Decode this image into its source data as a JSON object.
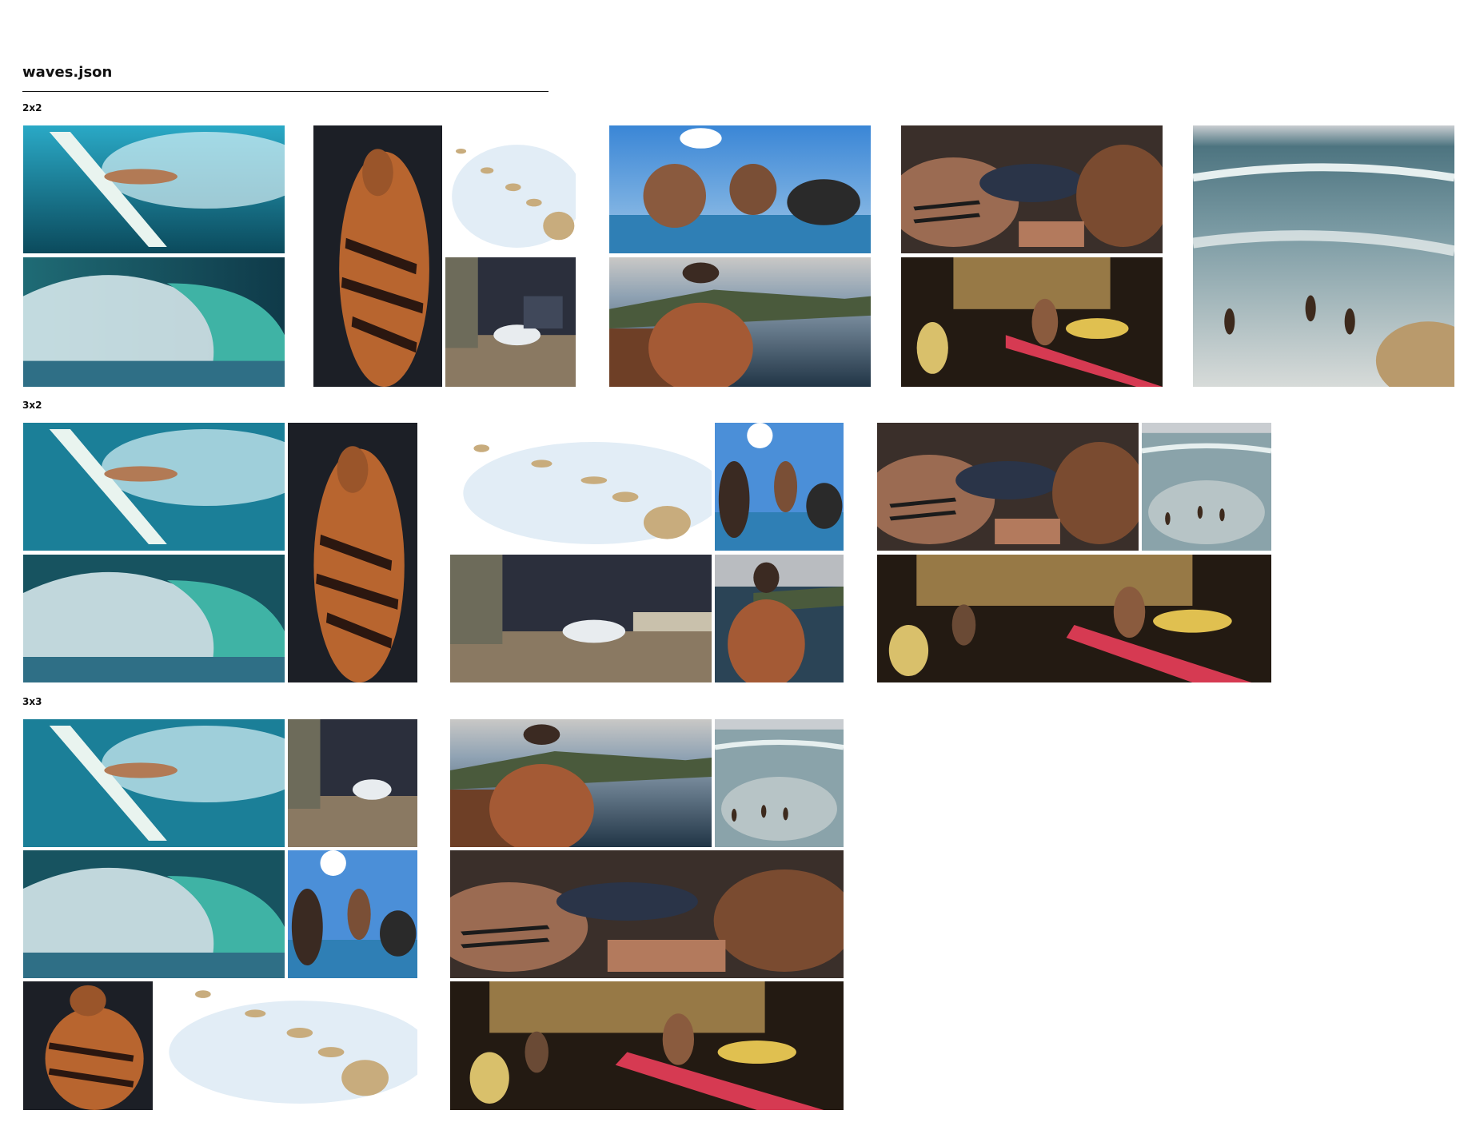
{
  "page": {
    "title": "waves.json"
  },
  "sections": [
    {
      "label": "2x2"
    },
    {
      "label": "3x2"
    },
    {
      "label": "3x3"
    }
  ],
  "photos": {
    "surfer_underwater": "surfer-underwater-photo",
    "barrel_wave": "barrel-wave-photo",
    "tattooed_man": "tattooed-man-photo",
    "hawaii_map": "hawaii-islands-map",
    "surf_workshop": "surfboard-workshop-photo",
    "canoe_paddlers": "outrigger-canoe-paddlers-photo",
    "back_tattoo": "back-tattoo-coast-photo",
    "tattoo_ritual": "tattoo-ritual-photo",
    "surfers_shore": "surfers-in-shorebreak-photo",
    "night_street": "night-street-surfers-photo"
  }
}
